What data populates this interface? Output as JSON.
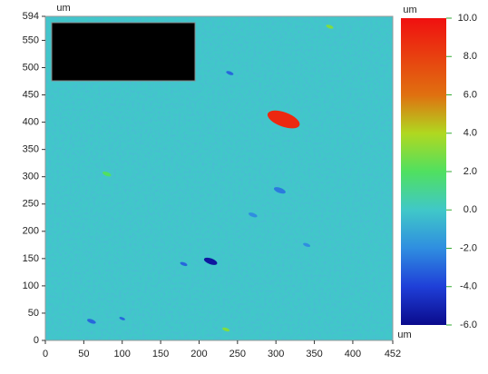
{
  "chart_data": {
    "type": "heatmap",
    "x_unit": "um",
    "y_unit": "um",
    "color_unit": "um",
    "xlim": [
      0,
      452
    ],
    "xticks": [
      0,
      50,
      100,
      150,
      200,
      250,
      300,
      350,
      400,
      452
    ],
    "ylim": [
      0,
      594
    ],
    "yticks": [
      0,
      50,
      100,
      150,
      200,
      250,
      300,
      350,
      400,
      450,
      500,
      550,
      594
    ],
    "clim": [
      -6,
      10
    ],
    "cticks": [
      {
        "value": 10,
        "label": "10.0"
      },
      {
        "value": 8,
        "label": "8.0"
      },
      {
        "value": 6,
        "label": "6.0"
      },
      {
        "value": 4,
        "label": "4.0"
      },
      {
        "value": 2,
        "label": "2.0"
      },
      {
        "value": 0,
        "label": "0.0"
      },
      {
        "value": -2,
        "label": "-2.0"
      },
      {
        "value": -4,
        "label": "-4.0"
      },
      {
        "value": -6,
        "label": "-6.0"
      }
    ],
    "colors": [
      "#0a0a8c",
      "#1f3fd8",
      "#2f8ee0",
      "#40c8c8",
      "#50e060",
      "#b0d820",
      "#e07010",
      "#e84010",
      "#f01010"
    ],
    "background": 0,
    "spots": {
      "x": [
        310,
        215,
        60,
        240,
        305,
        180,
        270,
        370,
        80,
        235,
        100,
        340
      ],
      "y": [
        405,
        145,
        35,
        490,
        275,
        140,
        230,
        575,
        305,
        20,
        40,
        175
      ],
      "sizes": [
        22,
        9,
        6,
        5,
        8,
        5,
        6,
        5,
        6,
        5,
        4,
        5
      ],
      "values": [
        9,
        -5.5,
        -3,
        -3,
        -2.5,
        -3,
        -2,
        3,
        2,
        3,
        -3,
        -2
      ]
    }
  }
}
